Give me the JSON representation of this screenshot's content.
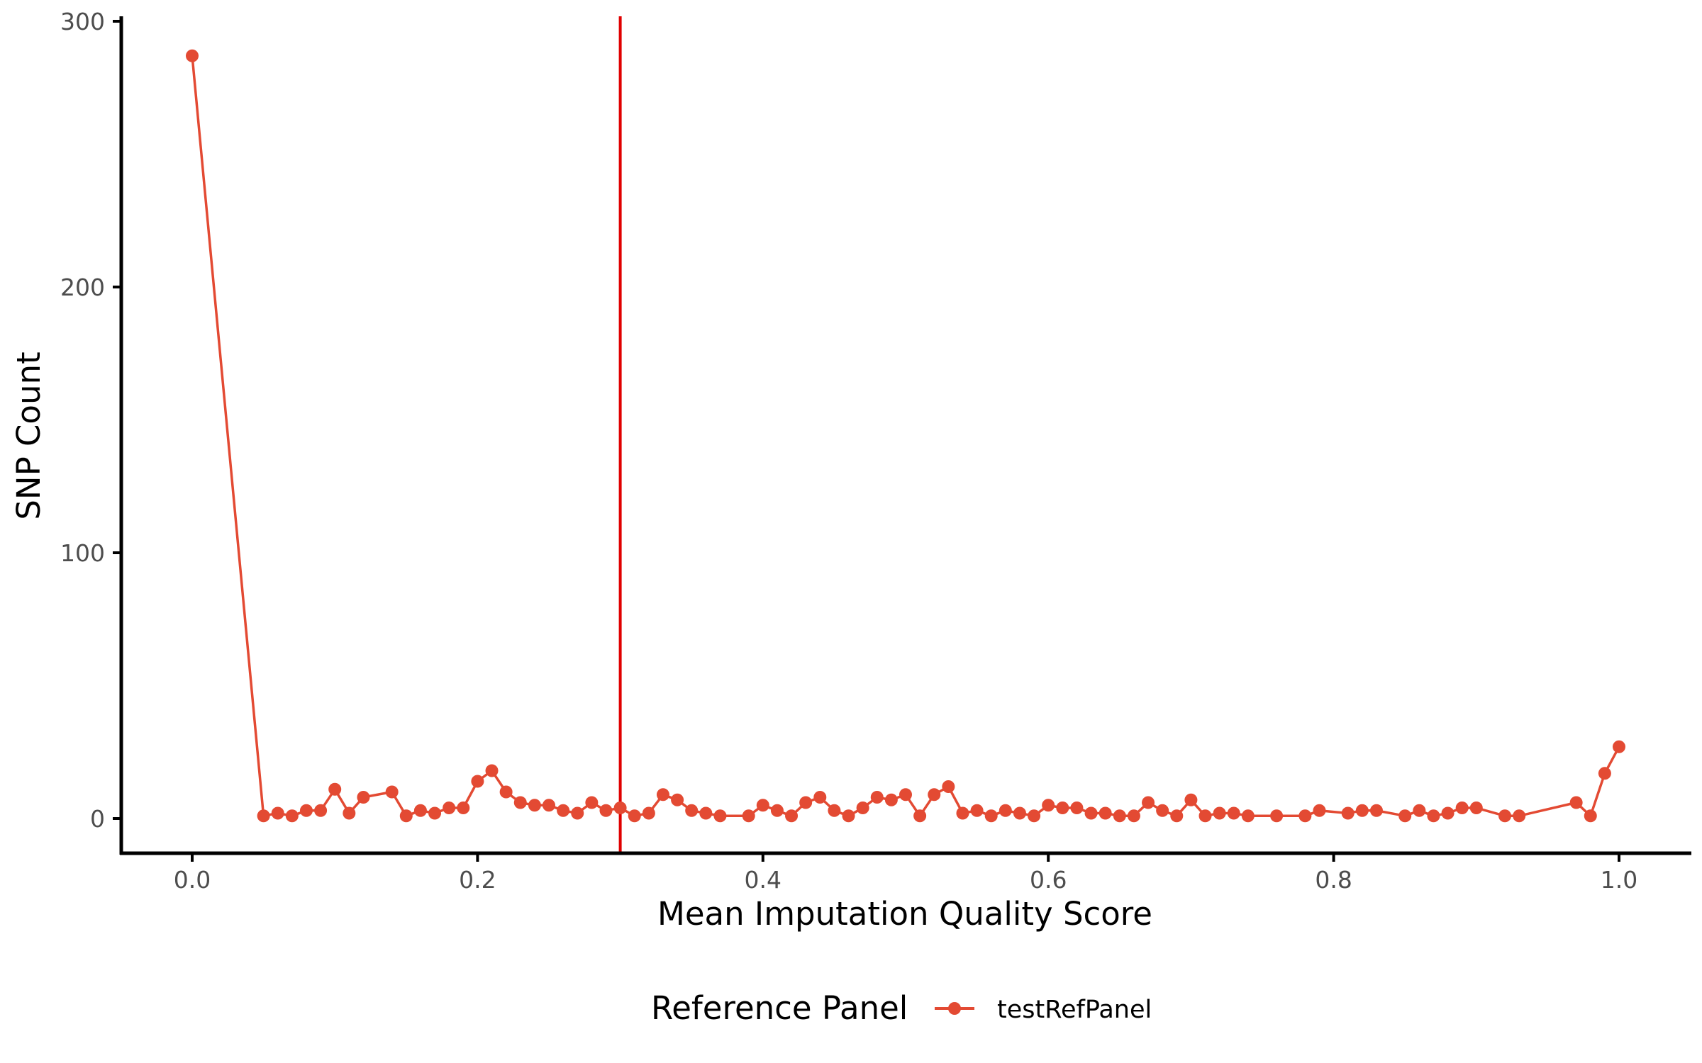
{
  "chart_data": {
    "type": "line",
    "xlabel": "Mean Imputation Quality Score",
    "ylabel": "SNP Count",
    "xlim": [
      -0.05,
      1.05
    ],
    "ylim": [
      -13,
      300
    ],
    "x_ticks": [
      "0.0",
      "0.2",
      "0.4",
      "0.6",
      "0.8",
      "1.0"
    ],
    "y_ticks": [
      "0",
      "100",
      "200",
      "300"
    ],
    "grid": false,
    "legend": {
      "title": "Reference Panel",
      "placement": "bottom",
      "entries": [
        "testRefPanel"
      ]
    },
    "reference_line": {
      "orientation": "vertical",
      "x": 0.3,
      "color": "#e00000"
    },
    "series": [
      {
        "name": "testRefPanel",
        "color": "#e34a33",
        "points": [
          [
            0.0,
            287
          ],
          [
            0.05,
            1
          ],
          [
            0.06,
            2
          ],
          [
            0.07,
            1
          ],
          [
            0.08,
            3
          ],
          [
            0.09,
            3
          ],
          [
            0.1,
            11
          ],
          [
            0.11,
            2
          ],
          [
            0.12,
            8
          ],
          [
            0.14,
            10
          ],
          [
            0.15,
            1
          ],
          [
            0.16,
            3
          ],
          [
            0.17,
            2
          ],
          [
            0.18,
            4
          ],
          [
            0.19,
            4
          ],
          [
            0.2,
            14
          ],
          [
            0.21,
            18
          ],
          [
            0.22,
            10
          ],
          [
            0.23,
            6
          ],
          [
            0.24,
            5
          ],
          [
            0.25,
            5
          ],
          [
            0.26,
            3
          ],
          [
            0.27,
            2
          ],
          [
            0.28,
            6
          ],
          [
            0.29,
            3
          ],
          [
            0.3,
            4
          ],
          [
            0.31,
            1
          ],
          [
            0.32,
            2
          ],
          [
            0.33,
            9
          ],
          [
            0.34,
            7
          ],
          [
            0.35,
            3
          ],
          [
            0.36,
            2
          ],
          [
            0.37,
            1
          ],
          [
            0.39,
            1
          ],
          [
            0.4,
            5
          ],
          [
            0.41,
            3
          ],
          [
            0.42,
            1
          ],
          [
            0.43,
            6
          ],
          [
            0.44,
            8
          ],
          [
            0.45,
            3
          ],
          [
            0.46,
            1
          ],
          [
            0.47,
            4
          ],
          [
            0.48,
            8
          ],
          [
            0.49,
            7
          ],
          [
            0.5,
            9
          ],
          [
            0.51,
            1
          ],
          [
            0.52,
            9
          ],
          [
            0.53,
            12
          ],
          [
            0.54,
            2
          ],
          [
            0.55,
            3
          ],
          [
            0.56,
            1
          ],
          [
            0.57,
            3
          ],
          [
            0.58,
            2
          ],
          [
            0.59,
            1
          ],
          [
            0.6,
            5
          ],
          [
            0.61,
            4
          ],
          [
            0.62,
            4
          ],
          [
            0.63,
            2
          ],
          [
            0.64,
            2
          ],
          [
            0.65,
            1
          ],
          [
            0.66,
            1
          ],
          [
            0.67,
            6
          ],
          [
            0.68,
            3
          ],
          [
            0.69,
            1
          ],
          [
            0.7,
            7
          ],
          [
            0.71,
            1
          ],
          [
            0.72,
            2
          ],
          [
            0.73,
            2
          ],
          [
            0.74,
            1
          ],
          [
            0.76,
            1
          ],
          [
            0.78,
            1
          ],
          [
            0.79,
            3
          ],
          [
            0.81,
            2
          ],
          [
            0.82,
            3
          ],
          [
            0.83,
            3
          ],
          [
            0.85,
            1
          ],
          [
            0.86,
            3
          ],
          [
            0.87,
            1
          ],
          [
            0.88,
            2
          ],
          [
            0.89,
            4
          ],
          [
            0.9,
            4
          ],
          [
            0.92,
            1
          ],
          [
            0.93,
            1
          ],
          [
            0.97,
            6
          ],
          [
            0.98,
            1
          ],
          [
            0.99,
            17
          ],
          [
            1.0,
            27
          ]
        ]
      }
    ]
  }
}
